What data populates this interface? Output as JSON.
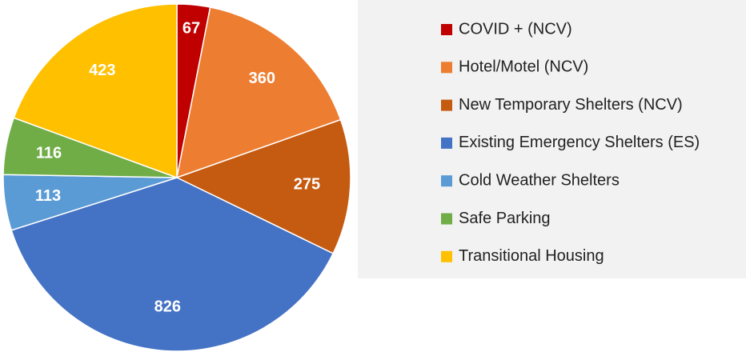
{
  "chart_data": {
    "type": "pie",
    "categories": [
      "COVID + (NCV)",
      "Hotel/Motel (NCV)",
      "New Temporary Shelters (NCV)",
      "Existing Emergency Shelters (ES)",
      "Cold Weather Shelters",
      "Safe Parking",
      "Transitional Housing"
    ],
    "values": [
      67,
      360,
      275,
      826,
      113,
      116,
      423
    ],
    "colors": [
      "#c00000",
      "#ed7d31",
      "#c55a11",
      "#4472c4",
      "#5b9bd5",
      "#70ad47",
      "#ffc000"
    ],
    "legend": "right"
  }
}
